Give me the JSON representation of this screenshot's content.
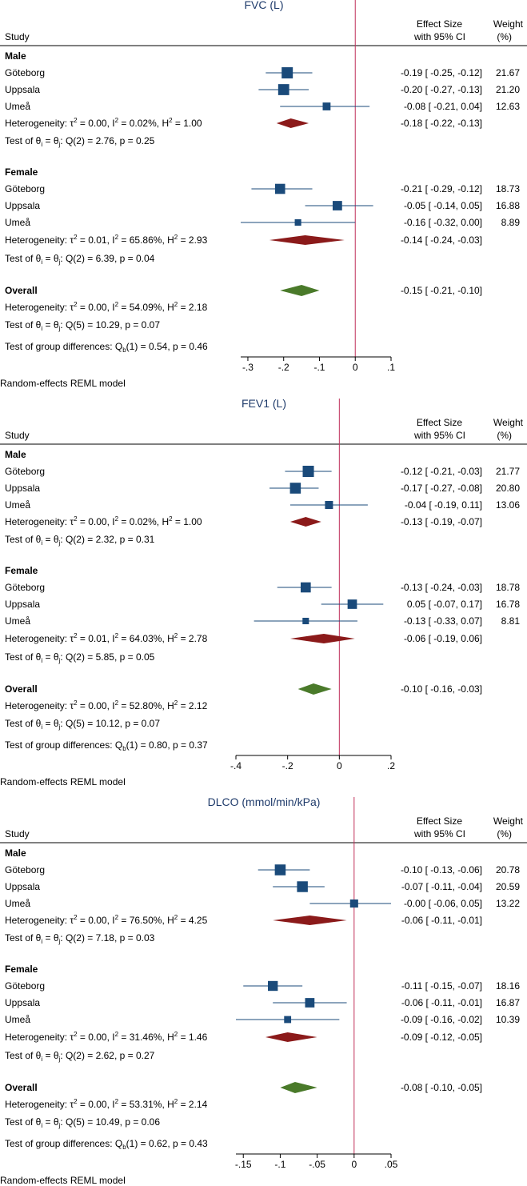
{
  "common": {
    "study_header": "Study",
    "effect_header_1": "Effect Size",
    "effect_header_2": "with 95% CI",
    "weight_header_1": "Weight",
    "weight_header_2": "(%)",
    "model_note": "Random-effects REML model"
  },
  "colors": {
    "title": "#1f3b6b",
    "study_marker": "#1a4a7a",
    "ci_line": "#1a4a7a",
    "subgroup_diamond": "#8b1a1a",
    "overall_diamond": "#4a7a2a",
    "null_line": "#c0305a"
  },
  "chart_data": [
    {
      "type": "forest",
      "title": "FVC (L)",
      "xlim": [
        -0.32,
        0.1
      ],
      "ticks": [
        -0.3,
        -0.2,
        -0.1,
        0,
        0.1
      ],
      "tick_labels": [
        "-.3",
        "-.2",
        "-.1",
        "0",
        ".1"
      ],
      "groups": [
        {
          "name": "Male",
          "studies": [
            {
              "name": "Göteborg",
              "es": -0.19,
              "lo": -0.25,
              "hi": -0.12,
              "weight": 21.67,
              "ci_text": "-0.19 [ -0.25, -0.12]",
              "weight_text": "21.67"
            },
            {
              "name": "Uppsala",
              "es": -0.2,
              "lo": -0.27,
              "hi": -0.13,
              "weight": 21.2,
              "ci_text": "-0.20 [ -0.27, -0.13]",
              "weight_text": "21.20"
            },
            {
              "name": "Umeå",
              "es": -0.08,
              "lo": -0.21,
              "hi": 0.04,
              "weight": 12.63,
              "ci_text": "-0.08 [ -0.21,  0.04]",
              "weight_text": "12.63"
            }
          ],
          "pooled": {
            "es": -0.18,
            "lo": -0.22,
            "hi": -0.13,
            "ci_text": "-0.18 [ -0.22, -0.13]"
          },
          "heterogeneity": {
            "tau2": "0.00",
            "i2": "0.02%",
            "h2": "1.00"
          },
          "test": {
            "df": "2",
            "q": "2.76",
            "p": "0.25"
          }
        },
        {
          "name": "Female",
          "studies": [
            {
              "name": "Göteborg",
              "es": -0.21,
              "lo": -0.29,
              "hi": -0.12,
              "weight": 18.73,
              "ci_text": "-0.21 [ -0.29, -0.12]",
              "weight_text": "18.73"
            },
            {
              "name": "Uppsala",
              "es": -0.05,
              "lo": -0.14,
              "hi": 0.05,
              "weight": 16.88,
              "ci_text": "-0.05 [ -0.14,  0.05]",
              "weight_text": "16.88"
            },
            {
              "name": "Umeå",
              "es": -0.16,
              "lo": -0.32,
              "hi": 0.0,
              "weight": 8.89,
              "ci_text": "-0.16 [ -0.32,  0.00]",
              "weight_text": "8.89"
            }
          ],
          "pooled": {
            "es": -0.14,
            "lo": -0.24,
            "hi": -0.03,
            "ci_text": "-0.14 [ -0.24, -0.03]"
          },
          "heterogeneity": {
            "tau2": "0.01",
            "i2": "65.86%",
            "h2": "2.93"
          },
          "test": {
            "df": "2",
            "q": "6.39",
            "p": "0.04"
          }
        }
      ],
      "overall": {
        "label": "Overall",
        "es": -0.15,
        "lo": -0.21,
        "hi": -0.1,
        "ci_text": "-0.15 [ -0.21, -0.10]",
        "heterogeneity": {
          "tau2": "0.00",
          "i2": "54.09%",
          "h2": "2.18"
        },
        "test": {
          "df": "5",
          "q": "10.29",
          "p": "0.07"
        },
        "group_diff": {
          "df": "1",
          "q": "0.54",
          "p": "0.46"
        }
      }
    },
    {
      "type": "forest",
      "title": "FEV1 (L)",
      "xlim": [
        -0.4,
        0.2
      ],
      "ticks": [
        -0.4,
        -0.2,
        0,
        0.2
      ],
      "tick_labels": [
        "-.4",
        "-.2",
        "0",
        ".2"
      ],
      "groups": [
        {
          "name": "Male",
          "studies": [
            {
              "name": "Göteborg",
              "es": -0.12,
              "lo": -0.21,
              "hi": -0.03,
              "weight": 21.77,
              "ci_text": "-0.12 [ -0.21, -0.03]",
              "weight_text": "21.77"
            },
            {
              "name": "Uppsala",
              "es": -0.17,
              "lo": -0.27,
              "hi": -0.08,
              "weight": 20.8,
              "ci_text": "-0.17 [ -0.27, -0.08]",
              "weight_text": "20.80"
            },
            {
              "name": "Umeå",
              "es": -0.04,
              "lo": -0.19,
              "hi": 0.11,
              "weight": 13.06,
              "ci_text": "-0.04 [ -0.19,  0.11]",
              "weight_text": "13.06"
            }
          ],
          "pooled": {
            "es": -0.13,
            "lo": -0.19,
            "hi": -0.07,
            "ci_text": "-0.13 [ -0.19, -0.07]"
          },
          "heterogeneity": {
            "tau2": "0.00",
            "i2": "0.02%",
            "h2": "1.00"
          },
          "test": {
            "df": "2",
            "q": "2.32",
            "p": "0.31"
          }
        },
        {
          "name": "Female",
          "studies": [
            {
              "name": "Göteborg",
              "es": -0.13,
              "lo": -0.24,
              "hi": -0.03,
              "weight": 18.78,
              "ci_text": "-0.13 [ -0.24, -0.03]",
              "weight_text": "18.78"
            },
            {
              "name": "Uppsala",
              "es": 0.05,
              "lo": -0.07,
              "hi": 0.17,
              "weight": 16.78,
              "ci_text": "0.05 [ -0.07,  0.17]",
              "weight_text": "16.78"
            },
            {
              "name": "Umeå",
              "es": -0.13,
              "lo": -0.33,
              "hi": 0.07,
              "weight": 8.81,
              "ci_text": "-0.13 [ -0.33,  0.07]",
              "weight_text": "8.81"
            }
          ],
          "pooled": {
            "es": -0.06,
            "lo": -0.19,
            "hi": 0.06,
            "ci_text": "-0.06 [ -0.19,  0.06]"
          },
          "heterogeneity": {
            "tau2": "0.01",
            "i2": "64.03%",
            "h2": "2.78"
          },
          "test": {
            "df": "2",
            "q": "5.85",
            "p": "0.05"
          }
        }
      ],
      "overall": {
        "label": "Overall",
        "es": -0.1,
        "lo": -0.16,
        "hi": -0.03,
        "ci_text": "-0.10 [ -0.16, -0.03]",
        "heterogeneity": {
          "tau2": "0.00",
          "i2": "52.80%",
          "h2": "2.12"
        },
        "test": {
          "df": "5",
          "q": "10.12",
          "p": "0.07"
        },
        "group_diff": {
          "df": "1",
          "q": "0.80",
          "p": "0.37"
        }
      }
    },
    {
      "type": "forest",
      "title": "DLCO (mmol/min/kPa)",
      "xlim": [
        -0.16,
        0.05
      ],
      "ticks": [
        -0.15,
        -0.1,
        -0.05,
        0,
        0.05
      ],
      "tick_labels": [
        "-.15",
        "-.1",
        "-.05",
        "0",
        ".05"
      ],
      "groups": [
        {
          "name": "Male",
          "studies": [
            {
              "name": "Göteborg",
              "es": -0.1,
              "lo": -0.13,
              "hi": -0.06,
              "weight": 20.78,
              "ci_text": "-0.10 [ -0.13, -0.06]",
              "weight_text": "20.78"
            },
            {
              "name": "Uppsala",
              "es": -0.07,
              "lo": -0.11,
              "hi": -0.04,
              "weight": 20.59,
              "ci_text": "-0.07 [ -0.11, -0.04]",
              "weight_text": "20.59"
            },
            {
              "name": "Umeå",
              "es": -0.0,
              "lo": -0.06,
              "hi": 0.05,
              "weight": 13.22,
              "ci_text": "-0.00 [ -0.06,  0.05]",
              "weight_text": "13.22"
            }
          ],
          "pooled": {
            "es": -0.06,
            "lo": -0.11,
            "hi": -0.01,
            "ci_text": "-0.06 [ -0.11, -0.01]"
          },
          "heterogeneity": {
            "tau2": "0.00",
            "i2": "76.50%",
            "h2": "4.25"
          },
          "test": {
            "df": "2",
            "q": "7.18",
            "p": "0.03"
          }
        },
        {
          "name": "Female",
          "studies": [
            {
              "name": "Göteborg",
              "es": -0.11,
              "lo": -0.15,
              "hi": -0.07,
              "weight": 18.16,
              "ci_text": "-0.11 [ -0.15, -0.07]",
              "weight_text": "18.16"
            },
            {
              "name": "Uppsala",
              "es": -0.06,
              "lo": -0.11,
              "hi": -0.01,
              "weight": 16.87,
              "ci_text": "-0.06 [ -0.11, -0.01]",
              "weight_text": "16.87"
            },
            {
              "name": "Umeå",
              "es": -0.09,
              "lo": -0.16,
              "hi": -0.02,
              "weight": 10.39,
              "ci_text": "-0.09 [ -0.16, -0.02]",
              "weight_text": "10.39"
            }
          ],
          "pooled": {
            "es": -0.09,
            "lo": -0.12,
            "hi": -0.05,
            "ci_text": "-0.09 [ -0.12, -0.05]"
          },
          "heterogeneity": {
            "tau2": "0.00",
            "i2": "31.46%",
            "h2": "1.46"
          },
          "test": {
            "df": "2",
            "q": "2.62",
            "p": "0.27"
          }
        }
      ],
      "overall": {
        "label": "Overall",
        "es": -0.08,
        "lo": -0.1,
        "hi": -0.05,
        "ci_text": "-0.08 [ -0.10, -0.05]",
        "heterogeneity": {
          "tau2": "0.00",
          "i2": "53.31%",
          "h2": "2.14"
        },
        "test": {
          "df": "5",
          "q": "10.49",
          "p": "0.06"
        },
        "group_diff": {
          "df": "1",
          "q": "0.62",
          "p": "0.43"
        }
      }
    }
  ]
}
